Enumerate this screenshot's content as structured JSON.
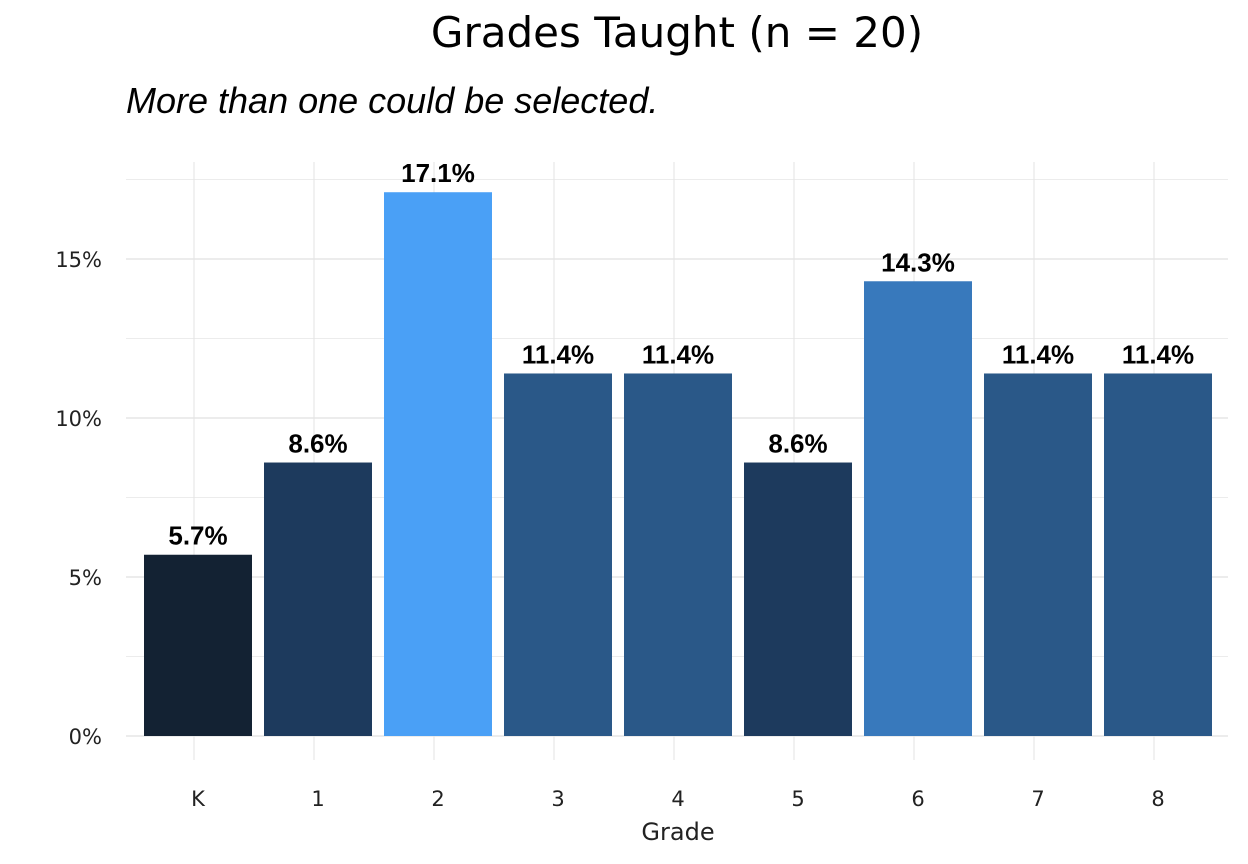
{
  "chart_data": {
    "type": "bar",
    "title": "Grades Taught (n = 20)",
    "subtitle": "More than one could be selected.",
    "xlabel": "Grade",
    "ylabel": "",
    "categories": [
      "K",
      "1",
      "2",
      "3",
      "4",
      "5",
      "6",
      "7",
      "8"
    ],
    "values": [
      5.7,
      8.6,
      17.1,
      11.4,
      11.4,
      8.6,
      14.3,
      11.4,
      11.4
    ],
    "data_labels": [
      "5.7%",
      "8.6%",
      "17.1%",
      "11.4%",
      "11.4%",
      "8.6%",
      "14.3%",
      "11.4%",
      "11.4%"
    ],
    "colors": [
      "#132233",
      "#1d3a5d",
      "#4aa0f6",
      "#2a5888",
      "#2a5888",
      "#1d3a5d",
      "#3879bc",
      "#2a5888",
      "#2a5888"
    ],
    "ylim": [
      0,
      17.5
    ],
    "y_ticks": [
      0,
      5,
      10,
      15
    ],
    "y_tick_labels": [
      "0%",
      "5%",
      "10%",
      "15%"
    ],
    "grid": true,
    "legend": "none"
  }
}
